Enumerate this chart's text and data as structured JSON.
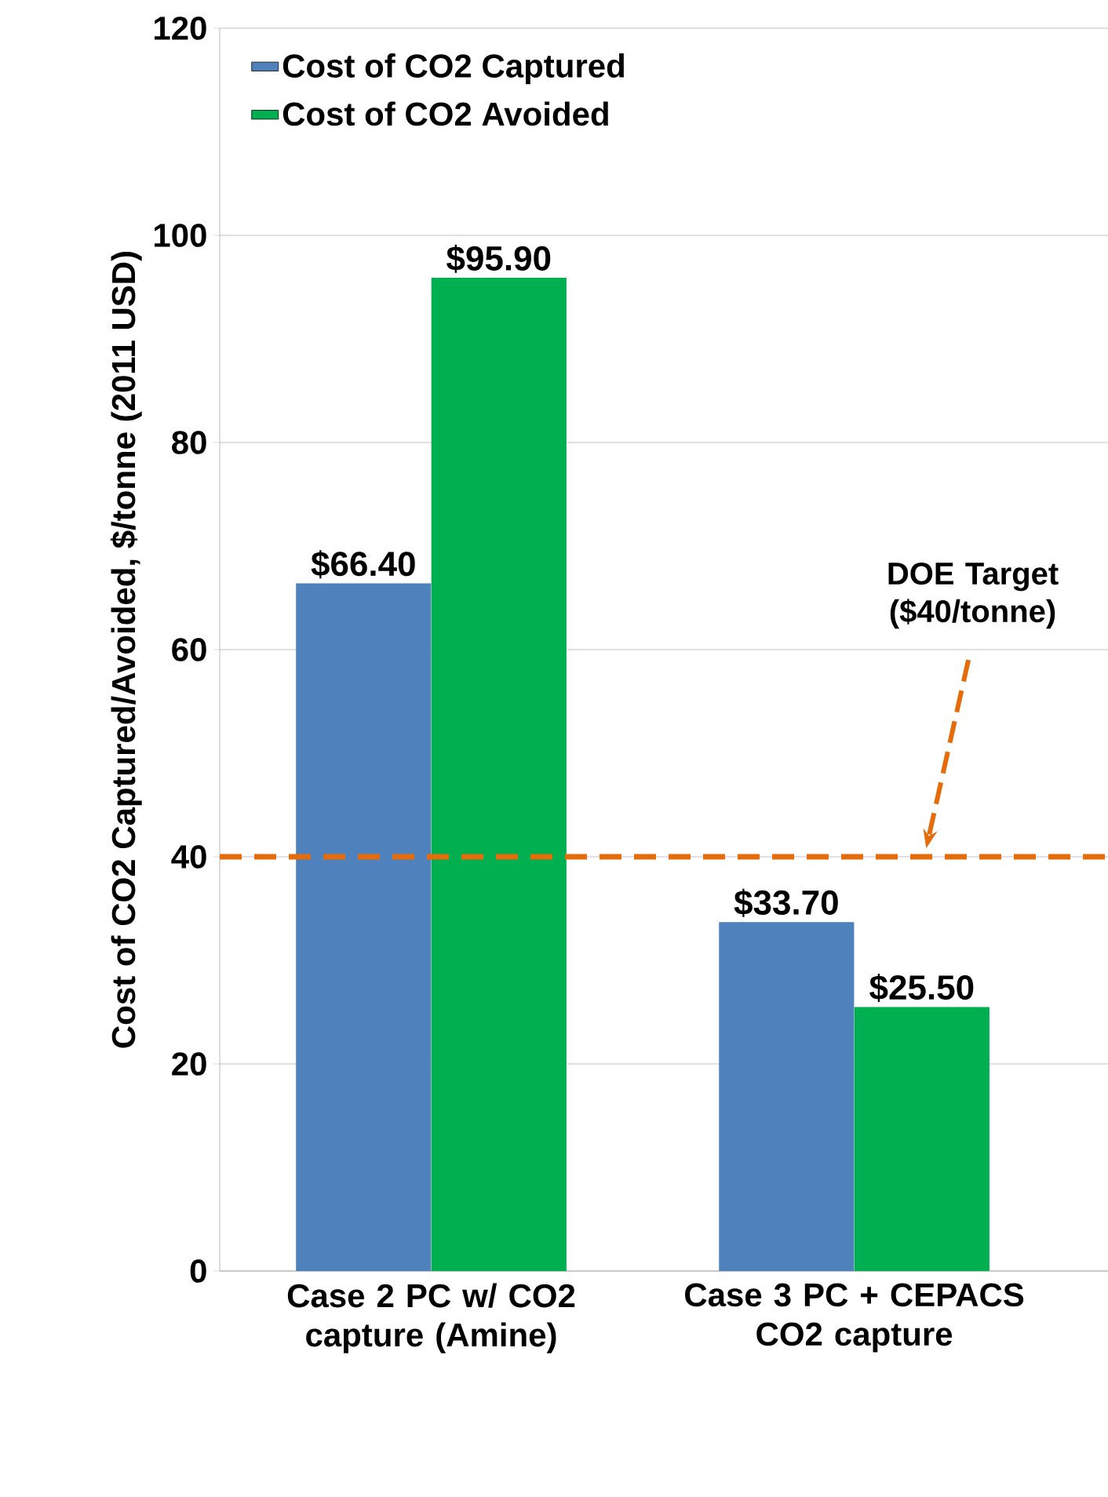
{
  "chart_data": {
    "type": "bar",
    "ylabel": "Cost of CO2 Captured/Avoided, $/tonne (2011 USD)",
    "categories": [
      "Case 2 PC w/ CO2 capture (Amine)",
      "Case 3 PC + CEPACS CO2 capture"
    ],
    "series": [
      {
        "name": "Cost of CO2 Captured",
        "color": "#4f81bd",
        "values": [
          66.4,
          33.7
        ],
        "value_labels": [
          "$66.40",
          "$33.70"
        ]
      },
      {
        "name": "Cost of CO2 Avoided",
        "color": "#00b050",
        "values": [
          95.9,
          25.5
        ],
        "value_labels": [
          "$95.90",
          "$25.50"
        ]
      }
    ],
    "ylim": [
      0,
      120
    ],
    "yticks": [
      0,
      20,
      40,
      60,
      80,
      100,
      120
    ],
    "grid": "y",
    "legend": "top left",
    "ref_lines": [
      {
        "axis": "y",
        "value": 40,
        "color": "#e46c0a",
        "line_style": "dashed"
      }
    ],
    "annotations": [
      "DOE Target ($40/tonne)"
    ]
  }
}
